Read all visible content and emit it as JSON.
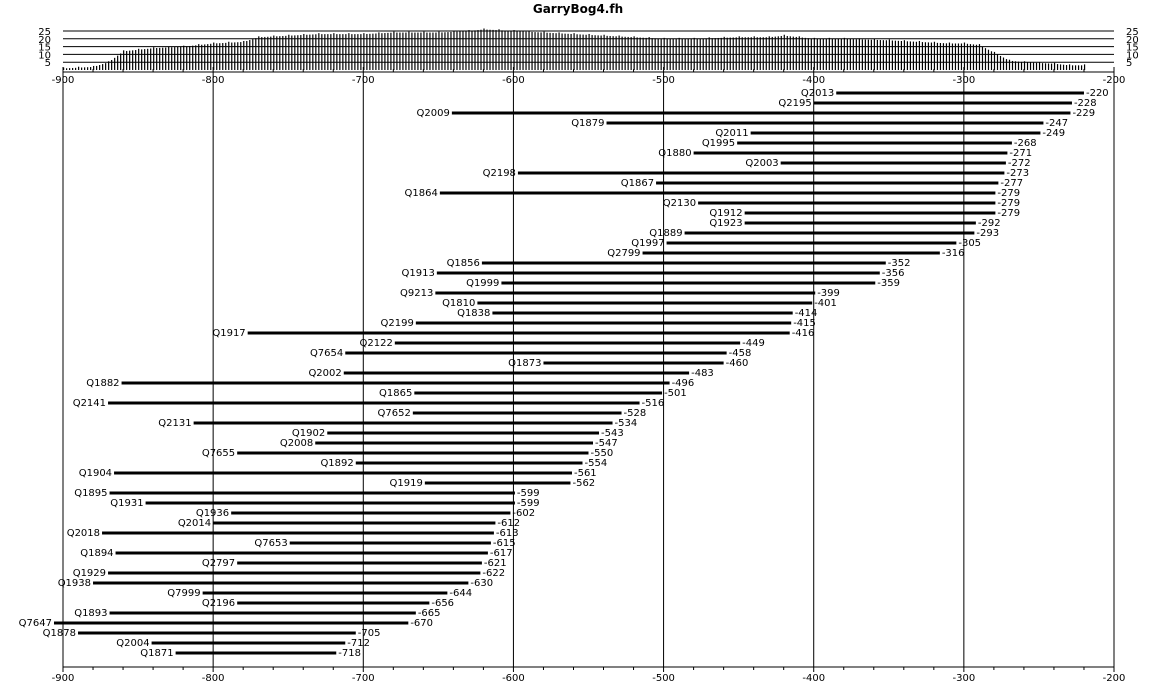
{
  "chart_data": {
    "type": "range-bar",
    "title": "GarryBog4.fh",
    "xlim": [
      -900,
      -200
    ],
    "x_ticks": [
      -900,
      -800,
      -700,
      -600,
      -500,
      -400,
      -300,
      -200
    ],
    "grid": "vertical",
    "histogram": {
      "y_ticks": [
        25,
        20,
        15,
        10,
        5
      ],
      "ylim": [
        0,
        25
      ],
      "profile": [
        [
          -900,
          1
        ],
        [
          -880,
          2
        ],
        [
          -870,
          5
        ],
        [
          -860,
          12
        ],
        [
          -850,
          13
        ],
        [
          -840,
          14
        ],
        [
          -820,
          15
        ],
        [
          -800,
          17
        ],
        [
          -780,
          18
        ],
        [
          -770,
          21
        ],
        [
          -750,
          22
        ],
        [
          -730,
          23
        ],
        [
          -700,
          23
        ],
        [
          -680,
          24
        ],
        [
          -650,
          24
        ],
        [
          -630,
          25
        ],
        [
          -620,
          26
        ],
        [
          -600,
          25
        ],
        [
          -580,
          24
        ],
        [
          -560,
          23
        ],
        [
          -540,
          22
        ],
        [
          -520,
          21
        ],
        [
          -500,
          20
        ],
        [
          -480,
          20
        ],
        [
          -450,
          21
        ],
        [
          -430,
          21
        ],
        [
          -420,
          22
        ],
        [
          -410,
          21
        ],
        [
          -400,
          20
        ],
        [
          -380,
          20
        ],
        [
          -350,
          19
        ],
        [
          -330,
          18
        ],
        [
          -310,
          17
        ],
        [
          -300,
          17
        ],
        [
          -290,
          16
        ],
        [
          -270,
          6
        ],
        [
          -260,
          5
        ],
        [
          -240,
          4
        ],
        [
          -230,
          3
        ],
        [
          -220,
          3
        ]
      ]
    },
    "series": [
      {
        "name": "Q2013",
        "start": -385,
        "end": -220
      },
      {
        "name": "Q2195",
        "start": -400,
        "end": -228
      },
      {
        "name": "Q2009",
        "start": -641,
        "end": -229
      },
      {
        "name": "Q1879",
        "start": -538,
        "end": -247
      },
      {
        "name": "Q2011",
        "start": -442,
        "end": -249
      },
      {
        "name": "Q1995",
        "start": -451,
        "end": -268
      },
      {
        "name": "Q1880",
        "start": -480,
        "end": -271
      },
      {
        "name": "Q2003",
        "start": -422,
        "end": -272
      },
      {
        "name": "Q2198",
        "start": -597,
        "end": -273
      },
      {
        "name": "Q1867",
        "start": -505,
        "end": -277
      },
      {
        "name": "Q1864",
        "start": -649,
        "end": -279
      },
      {
        "name": "Q2130",
        "start": -477,
        "end": -279
      },
      {
        "name": "Q1912",
        "start": -446,
        "end": -279
      },
      {
        "name": "Q1923",
        "start": -446,
        "end": -292
      },
      {
        "name": "Q1889",
        "start": -486,
        "end": -293
      },
      {
        "name": "Q1997",
        "start": -498,
        "end": -305
      },
      {
        "name": "Q2799",
        "start": -514,
        "end": -316
      },
      {
        "name": "Q1856",
        "start": -621,
        "end": -352
      },
      {
        "name": "Q1913",
        "start": -651,
        "end": -356
      },
      {
        "name": "Q1999",
        "start": -608,
        "end": -359
      },
      {
        "name": "Q9213",
        "start": -652,
        "end": -399
      },
      {
        "name": "Q1810",
        "start": -624,
        "end": -401
      },
      {
        "name": "Q1838",
        "start": -614,
        "end": -414
      },
      {
        "name": "Q2199",
        "start": -665,
        "end": -415
      },
      {
        "name": "Q1917",
        "start": -777,
        "end": -416
      },
      {
        "name": "Q2122",
        "start": -679,
        "end": -449
      },
      {
        "name": "Q7654",
        "start": -712,
        "end": -458
      },
      {
        "name": "Q1873",
        "start": -580,
        "end": -460
      },
      {
        "name": "Q2002",
        "start": -713,
        "end": -483
      },
      {
        "name": "Q1882",
        "start": -861,
        "end": -496
      },
      {
        "name": "Q1865",
        "start": -666,
        "end": -501
      },
      {
        "name": "Q2141",
        "start": -870,
        "end": -516
      },
      {
        "name": "Q7652",
        "start": -667,
        "end": -528
      },
      {
        "name": "Q2131",
        "start": -813,
        "end": -534
      },
      {
        "name": "Q1902",
        "start": -724,
        "end": -543
      },
      {
        "name": "Q2008",
        "start": -732,
        "end": -547
      },
      {
        "name": "Q7655",
        "start": -784,
        "end": -550
      },
      {
        "name": "Q1892",
        "start": -705,
        "end": -554
      },
      {
        "name": "Q1904",
        "start": -866,
        "end": -561
      },
      {
        "name": "Q1919",
        "start": -659,
        "end": -562
      },
      {
        "name": "Q1895",
        "start": -869,
        "end": -599
      },
      {
        "name": "Q1931",
        "start": -845,
        "end": -599
      },
      {
        "name": "Q1936",
        "start": -788,
        "end": -602
      },
      {
        "name": "Q2014",
        "start": -800,
        "end": -612
      },
      {
        "name": "Q2018",
        "start": -874,
        "end": -613
      },
      {
        "name": "Q7653",
        "start": -749,
        "end": -615
      },
      {
        "name": "Q1894",
        "start": -865,
        "end": -617
      },
      {
        "name": "Q2797",
        "start": -784,
        "end": -621
      },
      {
        "name": "Q1929",
        "start": -870,
        "end": -622
      },
      {
        "name": "Q1938",
        "start": -880,
        "end": -630
      },
      {
        "name": "Q7999",
        "start": -807,
        "end": -644
      },
      {
        "name": "Q2196",
        "start": -784,
        "end": -656
      },
      {
        "name": "Q1893",
        "start": -869,
        "end": -665
      },
      {
        "name": "Q7647",
        "start": -906,
        "end": -670
      },
      {
        "name": "Q1878",
        "start": -890,
        "end": -705
      },
      {
        "name": "Q2004",
        "start": -841,
        "end": -712
      },
      {
        "name": "Q1871",
        "start": -825,
        "end": -718
      }
    ]
  }
}
